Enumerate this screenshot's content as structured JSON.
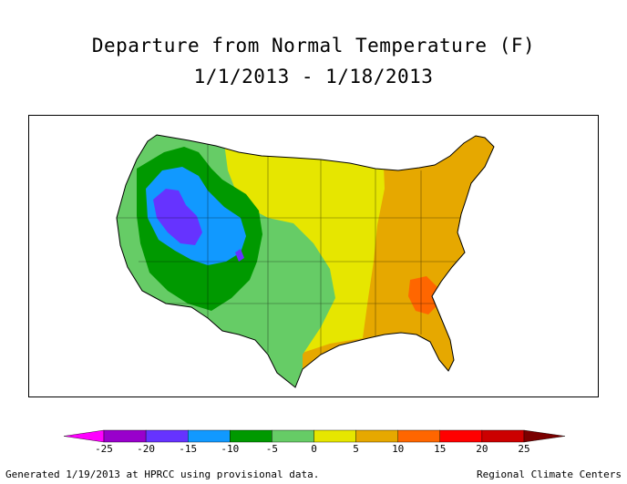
{
  "title": {
    "line1": "Departure from Normal Temperature (F)",
    "line2": "1/1/2013 - 1/18/2013"
  },
  "legend": {
    "ticks": [
      "-25",
      "-20",
      "-15",
      "-10",
      "-5",
      "0",
      "5",
      "10",
      "15",
      "20",
      "25"
    ],
    "colors": [
      "#ff00ff",
      "#9900cc",
      "#6633ff",
      "#1199ff",
      "#009900",
      "#66cc66",
      "#e6e600",
      "#e6a800",
      "#ff6600",
      "#ff0000",
      "#cc0000",
      "#7a0000"
    ]
  },
  "map": {
    "regions": [
      {
        "name": "west-coast-green",
        "color": "#66cc66"
      },
      {
        "name": "interior-west-dark-green",
        "color": "#009900"
      },
      {
        "name": "great-basin-blue",
        "color": "#1199ff"
      },
      {
        "name": "idaho-utah-purple",
        "color": "#6633ff"
      },
      {
        "name": "texas-plains-light-green",
        "color": "#66cc66"
      },
      {
        "name": "central-plains-yellow",
        "color": "#e6e600"
      },
      {
        "name": "eastern-orange",
        "color": "#e6a800"
      },
      {
        "name": "carolina-hotspot",
        "color": "#ff6600"
      }
    ]
  },
  "footer": {
    "left": "Generated 1/19/2013 at HPRCC using provisional data.",
    "right": "Regional Climate Centers"
  }
}
